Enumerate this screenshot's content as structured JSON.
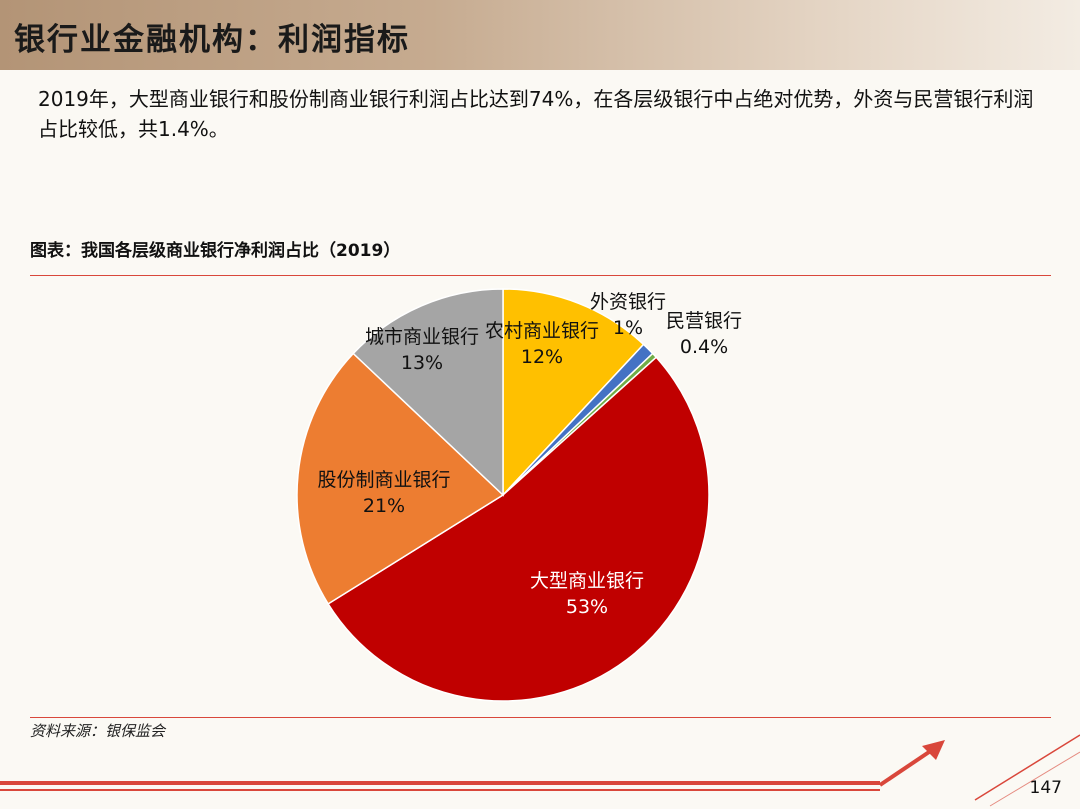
{
  "header": {
    "title": "银行业金融机构：利润指标"
  },
  "summary": {
    "text": "2019年，大型商业银行和股份制商业银行利润占比达到74%，在各层级银行中占绝对优势，外资与民营银行利润占比较低，共1.4%。"
  },
  "footer": {
    "source": "资料来源：银保监会",
    "page_number": "147"
  },
  "colors": {
    "accent_red": "#d9473b"
  },
  "chart_data": {
    "type": "pie",
    "title": "图表：我国各层级商业银行净利润占比（2019）",
    "start_angle_deg": 0,
    "direction": "clockwise",
    "slices": [
      {
        "name": "农村商业银行",
        "value": 12,
        "label": "12%",
        "color": "#ffc000"
      },
      {
        "name": "外资银行",
        "value": 1,
        "label": "1%",
        "color": "#4472c4"
      },
      {
        "name": "民营银行",
        "value": 0.4,
        "label": "0.4%",
        "color": "#70ad47"
      },
      {
        "name": "大型商业银行",
        "value": 53,
        "label": "53%",
        "color": "#c00000"
      },
      {
        "name": "股份制商业银行",
        "value": 21,
        "label": "21%",
        "color": "#ed7d31"
      },
      {
        "name": "城市商业银行",
        "value": 13,
        "label": "13%",
        "color": "#a5a5a5"
      }
    ]
  }
}
